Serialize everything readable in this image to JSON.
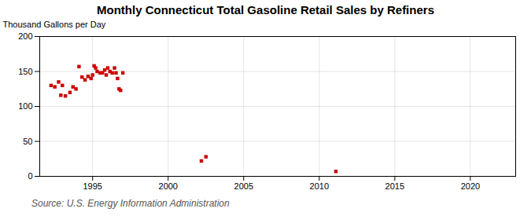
{
  "chart_data": {
    "type": "scatter",
    "title": "Monthly Connecticut Total Gasoline Retail Sales by Refiners",
    "ylabel": "Thousand Gallons per Day",
    "source": "Source: U.S. Energy Information Administration",
    "color": "#cc0000",
    "marker": "square",
    "grid": true,
    "xlim": [
      1991.5,
      2023
    ],
    "ylim": [
      0,
      200
    ],
    "xticks": [
      1995,
      2000,
      2005,
      2010,
      2015,
      2020
    ],
    "yticks": [
      0,
      50,
      100,
      150,
      200
    ],
    "x": [
      1992.25,
      1992.5,
      1992.75,
      1992.9,
      1993.0,
      1993.2,
      1993.5,
      1993.7,
      1993.9,
      1994.1,
      1994.3,
      1994.5,
      1994.7,
      1994.9,
      1995.0,
      1995.1,
      1995.2,
      1995.3,
      1995.5,
      1995.65,
      1995.8,
      1995.9,
      1996.0,
      1996.15,
      1996.3,
      1996.45,
      1996.55,
      1996.65,
      1996.75,
      1996.85,
      1997.0,
      2002.2,
      2002.5,
      2011.1
    ],
    "values": [
      130,
      128,
      135,
      116,
      130,
      115,
      120,
      128,
      125,
      157,
      142,
      138,
      143,
      140,
      145,
      158,
      155,
      150,
      148,
      148,
      152,
      145,
      155,
      150,
      148,
      155,
      148,
      140,
      125,
      123,
      148,
      22,
      28,
      7
    ]
  }
}
